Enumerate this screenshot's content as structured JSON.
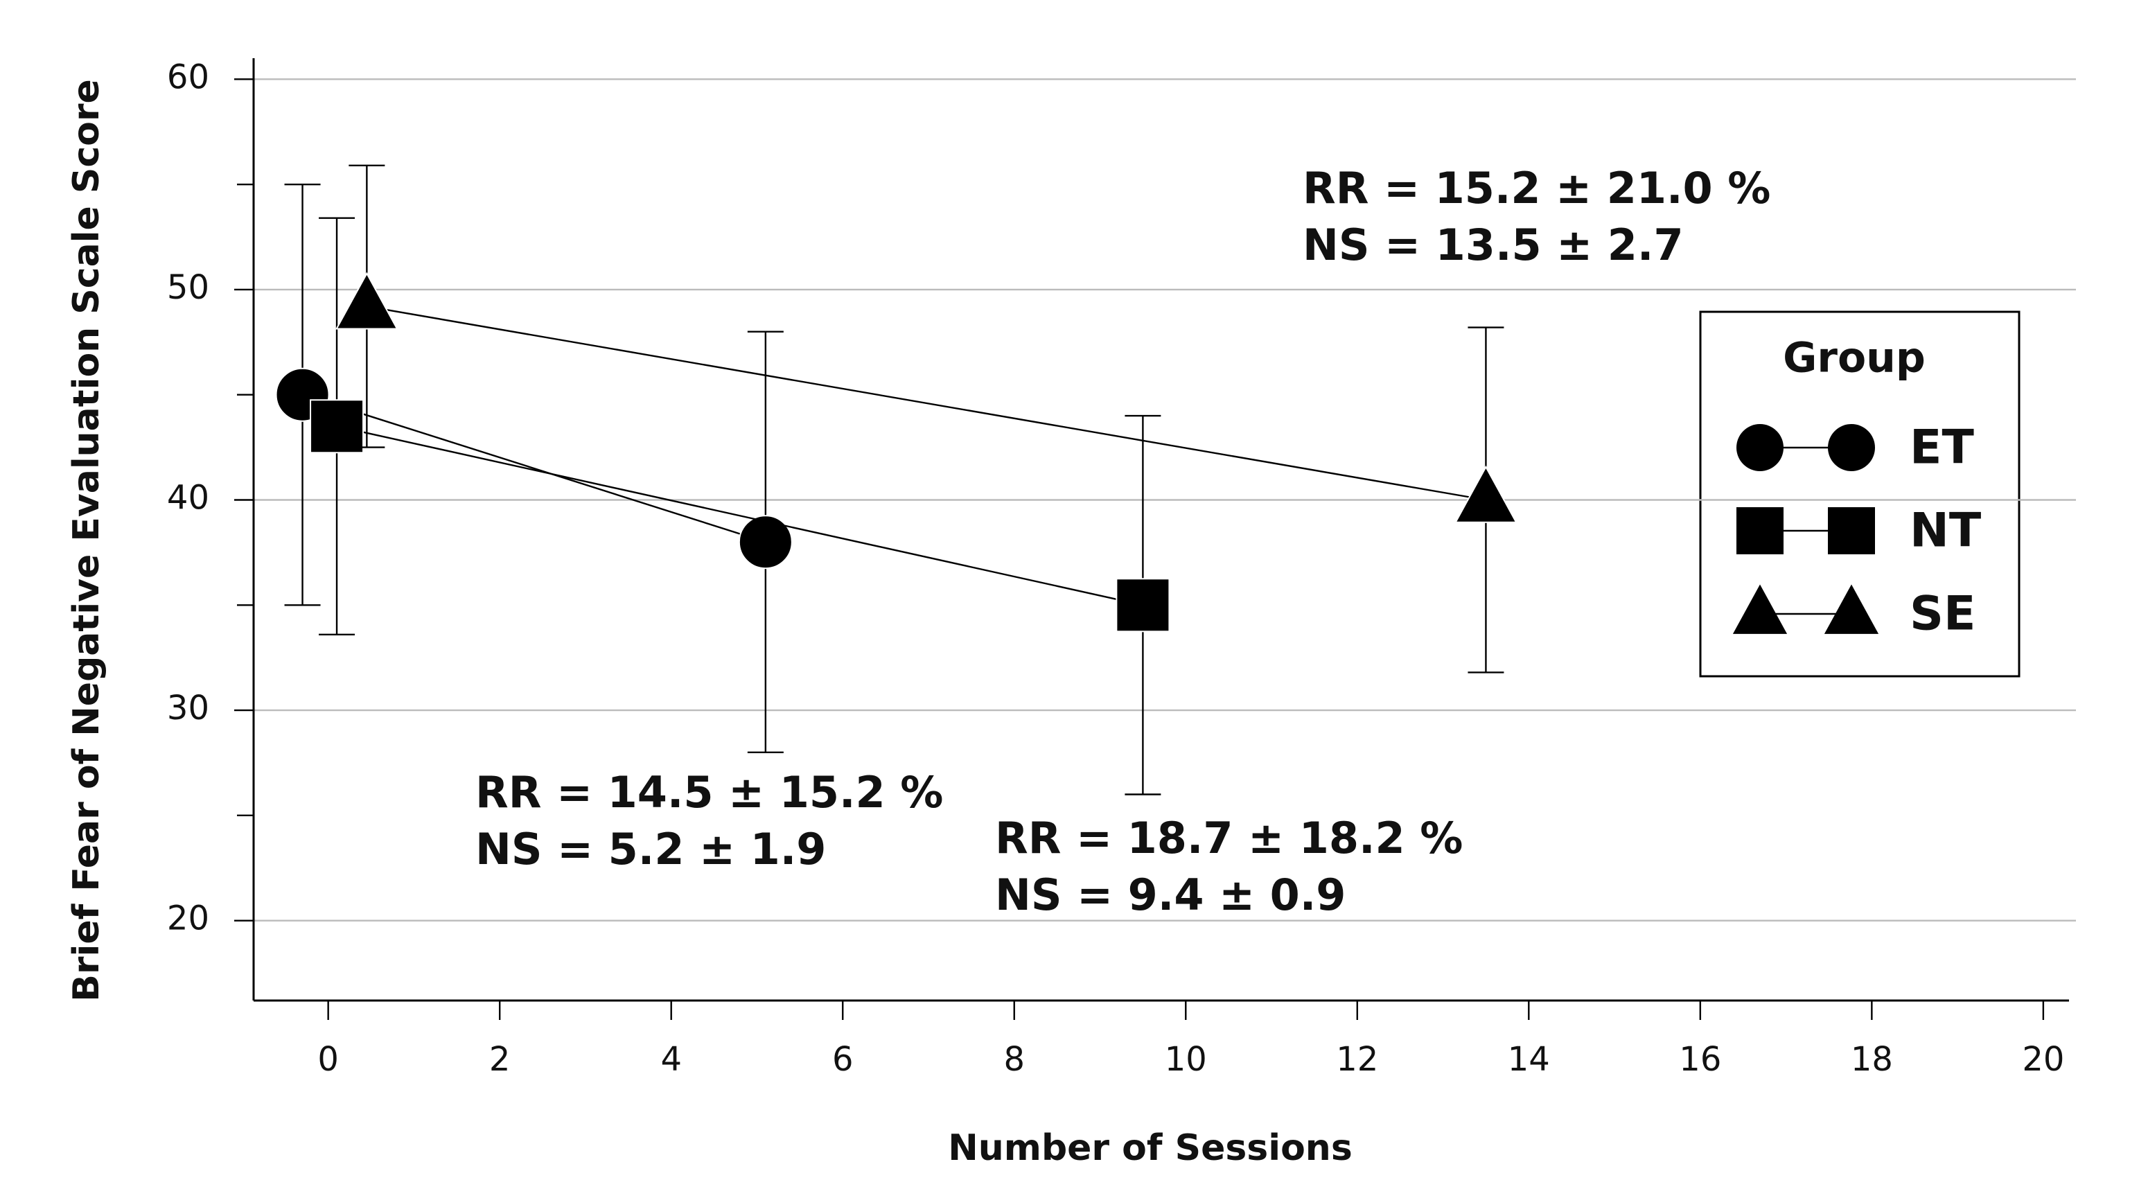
{
  "chart_data": {
    "type": "line",
    "x_label": "Number of Sessions",
    "y_label": "Brief Fear of Negative Evaluation Scale Score",
    "xlim": [
      -0.87,
      20.3
    ],
    "xticks": [
      0,
      2,
      4,
      6,
      8,
      10,
      12,
      14,
      16,
      18,
      20
    ],
    "ylim": [
      16.2,
      61
    ],
    "yticks": [
      20,
      30,
      40,
      50,
      60
    ],
    "yminorticks": [
      25,
      35,
      45,
      55
    ],
    "grid": true,
    "legend_title": "Group",
    "series": [
      {
        "name": "ET",
        "marker": "circle",
        "color": "#000000",
        "x": [
          -0.3,
          5.1
        ],
        "values": [
          45,
          38
        ],
        "errors": [
          10,
          10
        ]
      },
      {
        "name": "NT",
        "marker": "square",
        "color": "#000000",
        "x": [
          0.1,
          9.5
        ],
        "values": [
          43.5,
          35
        ],
        "errors": [
          9.9,
          9
        ]
      },
      {
        "name": "SE",
        "marker": "triangle",
        "color": "#000000",
        "x": [
          0.45,
          13.5
        ],
        "values": [
          49.2,
          40
        ],
        "errors": [
          6.7,
          8.2
        ]
      }
    ],
    "annotations": [
      [
        "RR = 15.2 ± 21.0 %",
        "NS = 13.5 ± 2.7"
      ],
      [
        "RR = 14.5 ± 15.2 %",
        "NS = 5.2 ± 1.9"
      ],
      [
        "RR = 18.7 ± 18.2 %",
        "NS = 9.4 ± 0.9"
      ]
    ]
  }
}
